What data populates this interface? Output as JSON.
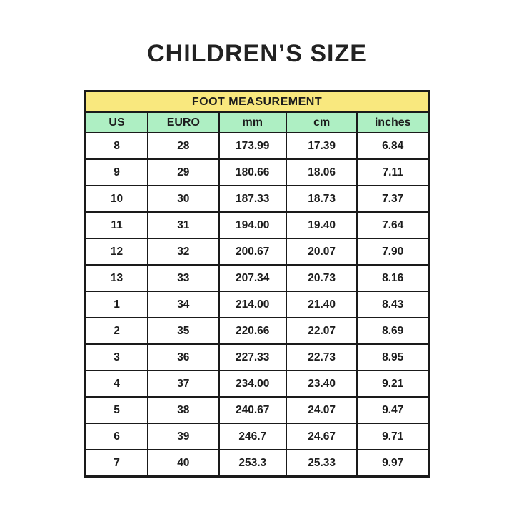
{
  "page": {
    "title": "CHILDREN’S SIZE",
    "background_color": "#ffffff"
  },
  "table": {
    "banner_label": "FOOT MEASUREMENT",
    "columns": [
      "US",
      "EURO",
      "mm",
      "cm",
      "inches"
    ],
    "rows": [
      [
        "8",
        "28",
        "173.99",
        "17.39",
        "6.84"
      ],
      [
        "9",
        "29",
        "180.66",
        "18.06",
        "7.11"
      ],
      [
        "10",
        "30",
        "187.33",
        "18.73",
        "7.37"
      ],
      [
        "11",
        "31",
        "194.00",
        "19.40",
        "7.64"
      ],
      [
        "12",
        "32",
        "200.67",
        "20.07",
        "7.90"
      ],
      [
        "13",
        "33",
        "207.34",
        "20.73",
        "8.16"
      ],
      [
        "1",
        "34",
        "214.00",
        "21.40",
        "8.43"
      ],
      [
        "2",
        "35",
        "220.66",
        "22.07",
        "8.69"
      ],
      [
        "3",
        "36",
        "227.33",
        "22.73",
        "8.95"
      ],
      [
        "4",
        "37",
        "234.00",
        "23.40",
        "9.21"
      ],
      [
        "5",
        "38",
        "240.67",
        "24.07",
        "9.47"
      ],
      [
        "6",
        "39",
        "246.7",
        "24.67",
        "9.71"
      ],
      [
        "7",
        "40",
        "253.3",
        "25.33",
        "9.97"
      ]
    ],
    "colors": {
      "banner_background": "#F9E87E",
      "column_header_background": "#AEEFC3",
      "border": "#1a1a1a",
      "text": "#1d1d1d"
    }
  },
  "chart_data": {
    "type": "table",
    "title": "CHILDREN’S SIZE",
    "subtitle": "FOOT MEASUREMENT",
    "columns": [
      "US",
      "EURO",
      "mm",
      "cm",
      "inches"
    ],
    "rows": [
      {
        "us": 8,
        "euro": 28,
        "mm": 173.99,
        "cm": 17.39,
        "inches": 6.84
      },
      {
        "us": 9,
        "euro": 29,
        "mm": 180.66,
        "cm": 18.06,
        "inches": 7.11
      },
      {
        "us": 10,
        "euro": 30,
        "mm": 187.33,
        "cm": 18.73,
        "inches": 7.37
      },
      {
        "us": 11,
        "euro": 31,
        "mm": 194.0,
        "cm": 19.4,
        "inches": 7.64
      },
      {
        "us": 12,
        "euro": 32,
        "mm": 200.67,
        "cm": 20.07,
        "inches": 7.9
      },
      {
        "us": 13,
        "euro": 33,
        "mm": 207.34,
        "cm": 20.73,
        "inches": 8.16
      },
      {
        "us": 1,
        "euro": 34,
        "mm": 214.0,
        "cm": 21.4,
        "inches": 8.43
      },
      {
        "us": 2,
        "euro": 35,
        "mm": 220.66,
        "cm": 22.07,
        "inches": 8.69
      },
      {
        "us": 3,
        "euro": 36,
        "mm": 227.33,
        "cm": 22.73,
        "inches": 8.95
      },
      {
        "us": 4,
        "euro": 37,
        "mm": 234.0,
        "cm": 23.4,
        "inches": 9.21
      },
      {
        "us": 5,
        "euro": 38,
        "mm": 240.67,
        "cm": 24.07,
        "inches": 9.47
      },
      {
        "us": 6,
        "euro": 39,
        "mm": 246.7,
        "cm": 24.67,
        "inches": 9.71
      },
      {
        "us": 7,
        "euro": 40,
        "mm": 253.3,
        "cm": 25.33,
        "inches": 9.97
      }
    ]
  }
}
